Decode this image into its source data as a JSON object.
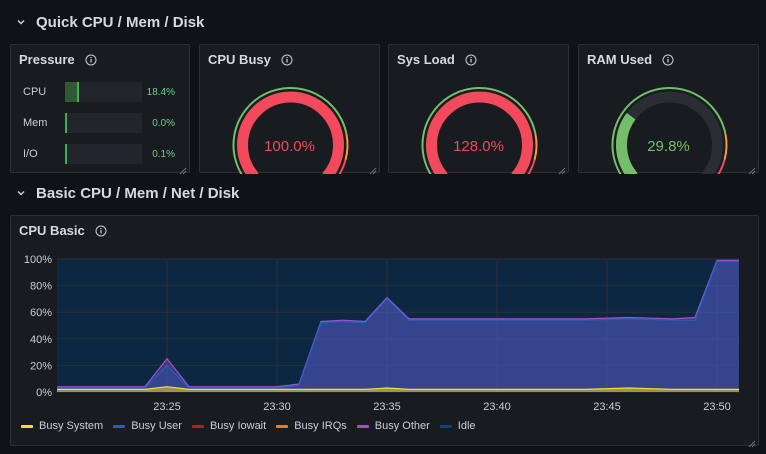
{
  "rows": {
    "quick": "Quick CPU / Mem / Disk",
    "basic": "Basic CPU / Mem / Net / Disk"
  },
  "pressure": {
    "title": "Pressure",
    "items": [
      {
        "label": "CPU",
        "value": "18.4%",
        "fraction": 0.184
      },
      {
        "label": "Mem",
        "value": "0.0%",
        "fraction": 0.0
      },
      {
        "label": "I/O",
        "value": "0.1%",
        "fraction": 0.001
      }
    ]
  },
  "gauges": [
    {
      "title": "CPU Busy",
      "value": "100.0%",
      "fraction": 1.0,
      "color": "#f2495c"
    },
    {
      "title": "Sys Load",
      "value": "128.0%",
      "fraction": 1.0,
      "color": "#f2495c"
    },
    {
      "title": "RAM Used",
      "value": "29.8%",
      "fraction": 0.298,
      "color": "#73bf69"
    }
  ],
  "cpu_basic": {
    "title": "CPU Basic",
    "legend": [
      {
        "name": "Busy System",
        "color": "#fade2a"
      },
      {
        "name": "Busy User",
        "color": "#1f60c4"
      },
      {
        "name": "Busy Iowait",
        "color": "#c4162a"
      },
      {
        "name": "Busy IRQs",
        "color": "#ff780a"
      },
      {
        "name": "Busy Other",
        "color": "#a352cc"
      },
      {
        "name": "Idle",
        "color": "#0a437c"
      }
    ]
  },
  "chart_data": {
    "type": "area",
    "title": "CPU Basic",
    "x_ticks": [
      "23:25",
      "23:30",
      "23:35",
      "23:40",
      "23:45",
      "23:50"
    ],
    "y_ticks": [
      "0%",
      "20%",
      "40%",
      "60%",
      "80%",
      "100%"
    ],
    "ylim": [
      0,
      100
    ],
    "x": [
      "23:20",
      "23:22",
      "23:24",
      "23:25",
      "23:26",
      "23:28",
      "23:30",
      "23:31",
      "23:32",
      "23:33",
      "23:34",
      "23:35",
      "23:36",
      "23:38",
      "23:40",
      "23:42",
      "23:44",
      "23:46",
      "23:48",
      "23:49",
      "23:50",
      "23:51"
    ],
    "series": [
      {
        "name": "Busy System",
        "values": [
          2,
          2,
          2,
          4,
          2,
          2,
          2,
          2,
          2,
          2,
          2,
          3,
          2,
          2,
          2,
          2,
          2,
          3,
          2,
          2,
          2,
          2
        ]
      },
      {
        "name": "Busy User",
        "values": [
          3,
          3,
          3,
          20,
          3,
          3,
          3,
          5,
          52,
          53,
          52,
          70,
          54,
          54,
          54,
          54,
          54,
          55,
          54,
          54,
          98,
          98
        ]
      },
      {
        "name": "Busy Other",
        "values": [
          4,
          4,
          4,
          25,
          4,
          4,
          4,
          6,
          53,
          54,
          53,
          71,
          55,
          55,
          55,
          55,
          55,
          56,
          55,
          56,
          99,
          99
        ]
      }
    ],
    "legend_position": "bottom",
    "grid": true
  }
}
